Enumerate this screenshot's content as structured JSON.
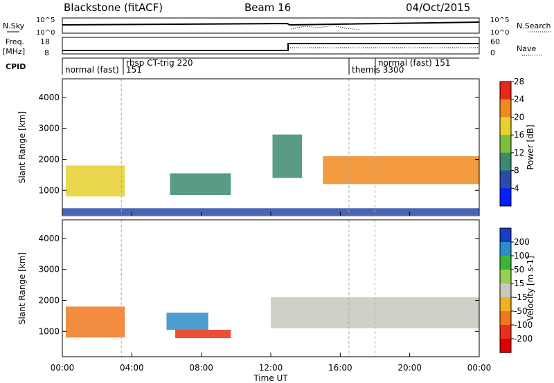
{
  "header": {
    "station": "Blackstone (fitACF)",
    "beam": "Beam 16",
    "date": "04/Oct/2015"
  },
  "side_labels": {
    "nsky": "N.Sky",
    "nsky_top": "10^5",
    "nsky_bottom": "10^0",
    "freq": "Freq.",
    "freq_unit": "[MHz]",
    "freq_top": "18",
    "freq_bottom": "8",
    "cpid": "CPID",
    "nsearch": "N.Search",
    "nsearch_top": "10^5",
    "nsearch_bottom": "10^0",
    "nave": "Nave",
    "nave_top": "60",
    "nave_bottom": "0"
  },
  "cpid_segments": [
    {
      "label": "normal (fast)",
      "start": 0.0,
      "end": 3.5
    },
    {
      "label": "rbsp CT-trig 220",
      "start": 3.5,
      "end": 16.5
    },
    {
      "label": "151",
      "start": 3.5,
      "end": 3.5
    },
    {
      "label": "themis 3300",
      "start": 16.5,
      "end": 18.0
    },
    {
      "label": "normal (fast) 151",
      "start": 18.0,
      "end": 24.0
    }
  ],
  "chart_data": [
    {
      "type": "heatmap",
      "panel": "power",
      "ylabel": "Slant Range [km]",
      "yticks": [
        "1000",
        "2000",
        "3000",
        "4000"
      ],
      "ytick_values": [
        1000,
        2000,
        3000,
        4000
      ],
      "ylim": [
        180,
        4600
      ],
      "xlim": [
        0,
        24
      ],
      "colorbar": {
        "label": "Power [dB]",
        "ticks": [
          "4",
          "8",
          "12",
          "16",
          "20",
          "24",
          "28"
        ],
        "colors": [
          "#0020ff",
          "#2c4aa8",
          "#3c8a6e",
          "#7cbf3c",
          "#e8d030",
          "#f08a20",
          "#e82818"
        ]
      },
      "regions": [
        {
          "t0": 0.2,
          "t1": 3.6,
          "r0": 800,
          "r1": 1800,
          "value": 20
        },
        {
          "t0": 6.2,
          "t1": 9.7,
          "r0": 850,
          "r1": 1550,
          "value": 12
        },
        {
          "t0": 12.1,
          "t1": 13.8,
          "r0": 1400,
          "r1": 2800,
          "value": 10
        },
        {
          "t0": 15.0,
          "t1": 24.0,
          "r0": 1200,
          "r1": 2100,
          "value": 24
        },
        {
          "t0": 0.0,
          "t1": 24.0,
          "r0": 200,
          "r1": 420,
          "value": 8
        }
      ],
      "vlines": [
        3.4,
        16.5,
        18.0
      ]
    },
    {
      "type": "heatmap",
      "panel": "velocity",
      "ylabel": "Slant Range [km]",
      "xlabel": "Time UT",
      "yticks": [
        "1000",
        "2000",
        "3000",
        "4000"
      ],
      "ytick_values": [
        1000,
        2000,
        3000,
        4000
      ],
      "ylim": [
        180,
        4600
      ],
      "xlim": [
        0,
        24
      ],
      "xticks": [
        "00:00",
        "04:00",
        "08:00",
        "12:00",
        "16:00",
        "20:00",
        "00:00"
      ],
      "xtick_values": [
        0,
        4,
        8,
        12,
        16,
        20,
        24
      ],
      "colorbar": {
        "label": "Velocity [m s-1]",
        "ticks": [
          "200",
          "100",
          "50",
          "15",
          "-15",
          "-50",
          "-100",
          "-200"
        ],
        "colors": [
          "#1c3cc8",
          "#2c8cc8",
          "#3cb43c",
          "#98d050",
          "#c8c8c0",
          "#f0b020",
          "#f07820",
          "#e83018",
          "#e00000"
        ]
      },
      "regions": [
        {
          "t0": 0.2,
          "t1": 3.6,
          "r0": 800,
          "r1": 1800,
          "value": -60
        },
        {
          "t0": 6.0,
          "t1": 8.4,
          "r0": 1050,
          "r1": 1600,
          "value": 150
        },
        {
          "t0": 6.5,
          "t1": 9.7,
          "r0": 780,
          "r1": 1050,
          "value": -120
        },
        {
          "t0": 12.0,
          "t1": 24.0,
          "r0": 1100,
          "r1": 2100,
          "value": 0
        }
      ],
      "vlines": [
        3.4,
        16.5,
        18.0
      ]
    }
  ]
}
